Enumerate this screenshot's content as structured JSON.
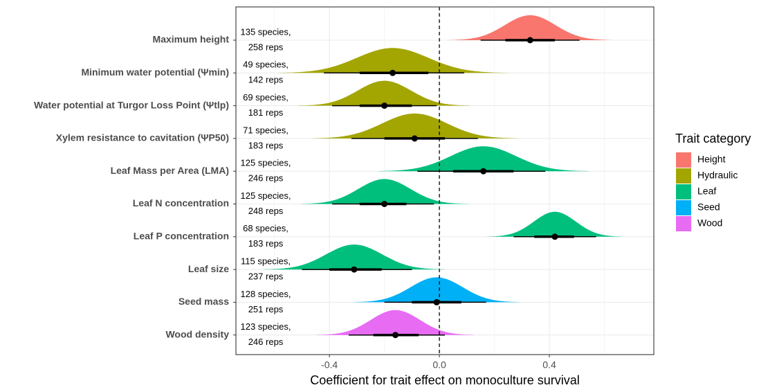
{
  "chart_data": {
    "type": "halfeye",
    "xlabel": "Coefficient for trait effect on monoculture survival",
    "xlim": [
      -0.74,
      0.78
    ],
    "xticks": [
      -0.4,
      {
        "value": 0,
        "label": "0.0"
      },
      0.4
    ],
    "minor_xticks": [
      -0.6,
      -0.2,
      0.2,
      0.6
    ],
    "reference_line": 0,
    "grid": true,
    "legend": {
      "title": "Trait category",
      "position": "right"
    },
    "groups": [
      {
        "name": "Height",
        "color": "#F8766D"
      },
      {
        "name": "Hydraulic",
        "color": "#A3A500"
      },
      {
        "name": "Leaf",
        "color": "#00BF7D"
      },
      {
        "name": "Seed",
        "color": "#00B0F6"
      },
      {
        "name": "Wood",
        "color": "#E76BF3"
      }
    ],
    "rows": [
      {
        "label": "Maximum height",
        "group": "Height",
        "estimate": 0.33,
        "inner": [
          0.24,
          0.42
        ],
        "outer": [
          0.15,
          0.51
        ],
        "species": "135 species,",
        "reps": "258 reps"
      },
      {
        "label": "Minimum water potential (Ψmin)",
        "group": "Hydraulic",
        "estimate": -0.17,
        "inner": [
          -0.29,
          -0.04
        ],
        "outer": [
          -0.42,
          0.09
        ],
        "species": "49 species,",
        "reps": "142 reps"
      },
      {
        "label": "Water potential at Turgor Loss Point (Ψtlp)",
        "group": "Hydraulic",
        "estimate": -0.2,
        "inner": [
          -0.29,
          -0.1
        ],
        "outer": [
          -0.39,
          -0.01
        ],
        "species": "69 species,",
        "reps": "181 reps"
      },
      {
        "label": "Xylem resistance to cavitation (ΨP50)",
        "group": "Hydraulic",
        "estimate": -0.09,
        "inner": [
          -0.2,
          0.02
        ],
        "outer": [
          -0.32,
          0.14
        ],
        "species": "71 species,",
        "reps": "183 reps"
      },
      {
        "label": "Leaf Mass per Area (LMA)",
        "group": "Leaf",
        "estimate": 0.16,
        "inner": [
          0.05,
          0.27
        ],
        "outer": [
          -0.08,
          0.385
        ],
        "species": "125 species,",
        "reps": "246 reps"
      },
      {
        "label": "Leaf N concentration",
        "group": "Leaf",
        "estimate": -0.2,
        "inner": [
          -0.29,
          -0.12
        ],
        "outer": [
          -0.39,
          -0.02
        ],
        "species": "125 species,",
        "reps": "248 reps"
      },
      {
        "label": "Leaf P concentration",
        "group": "Leaf",
        "estimate": 0.42,
        "inner": [
          0.345,
          0.49
        ],
        "outer": [
          0.27,
          0.57
        ],
        "species": "68 species,",
        "reps": "183 reps"
      },
      {
        "label": "Leaf size",
        "group": "Leaf",
        "estimate": -0.31,
        "inner": [
          -0.4,
          -0.21
        ],
        "outer": [
          -0.5,
          -0.1
        ],
        "species": "115 species,",
        "reps": "237 reps"
      },
      {
        "label": "Seed mass",
        "group": "Seed",
        "estimate": -0.01,
        "inner": [
          -0.1,
          0.08
        ],
        "outer": [
          -0.2,
          0.17
        ],
        "species": "128 species,",
        "reps": "251 reps"
      },
      {
        "label": "Wood density",
        "group": "Wood",
        "estimate": -0.16,
        "inner": [
          -0.24,
          -0.075
        ],
        "outer": [
          -0.33,
          0.02
        ],
        "species": "123 species,",
        "reps": "246 reps"
      }
    ]
  }
}
